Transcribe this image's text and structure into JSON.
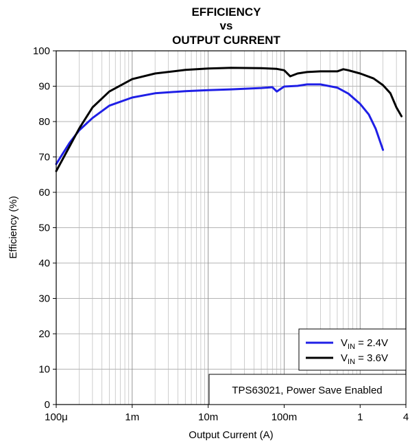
{
  "chart_data": {
    "type": "line",
    "title_lines": [
      "EFFICIENCY",
      "vs",
      "OUTPUT CURRENT"
    ],
    "xlabel": "Output Current (A)",
    "ylabel": "Efficiency (%)",
    "x_scale": "log",
    "xlim": [
      0.0001,
      4
    ],
    "ylim": [
      0,
      100
    ],
    "grid": true,
    "x_ticks": [
      {
        "value": 0.0001,
        "label": "100μ"
      },
      {
        "value": 0.001,
        "label": "1m"
      },
      {
        "value": 0.01,
        "label": "10m"
      },
      {
        "value": 0.1,
        "label": "100m"
      },
      {
        "value": 1,
        "label": "1"
      },
      {
        "value": 4,
        "label": "4"
      }
    ],
    "y_ticks": [
      0,
      10,
      20,
      30,
      40,
      50,
      60,
      70,
      80,
      90,
      100
    ],
    "legend_position": "bottom-right",
    "annotation": "TPS63021, Power Save Enabled",
    "series": [
      {
        "legend_main": "V",
        "legend_sub": "IN",
        "legend_rest": " = 2.4V",
        "color": "#1f1fe6",
        "x": [
          0.0001,
          0.00015,
          0.0002,
          0.0003,
          0.0005,
          0.001,
          0.002,
          0.005,
          0.01,
          0.02,
          0.05,
          0.07,
          0.08,
          0.1,
          0.15,
          0.2,
          0.3,
          0.5,
          0.7,
          1,
          1.3,
          1.6,
          2
        ],
        "y": [
          68,
          74,
          77.5,
          81,
          84.5,
          86.8,
          88,
          88.6,
          88.9,
          89.1,
          89.5,
          89.7,
          88.5,
          89.9,
          90.1,
          90.5,
          90.5,
          89.6,
          87.9,
          85,
          82,
          78,
          72
        ]
      },
      {
        "legend_main": "V",
        "legend_sub": "IN",
        "legend_rest": " = 3.6V",
        "color": "#000000",
        "x": [
          0.0001,
          0.00015,
          0.0002,
          0.0003,
          0.0005,
          0.001,
          0.002,
          0.005,
          0.01,
          0.02,
          0.05,
          0.08,
          0.1,
          0.12,
          0.15,
          0.2,
          0.3,
          0.5,
          0.6,
          0.7,
          1,
          1.5,
          2,
          2.5,
          3,
          3.5
        ],
        "y": [
          66,
          73,
          78,
          84,
          88.5,
          92,
          93.6,
          94.6,
          95,
          95.2,
          95.1,
          94.9,
          94.5,
          92.8,
          93.6,
          94,
          94.2,
          94.2,
          94.8,
          94.5,
          93.6,
          92.2,
          90.3,
          88,
          84,
          81.5
        ]
      }
    ]
  }
}
